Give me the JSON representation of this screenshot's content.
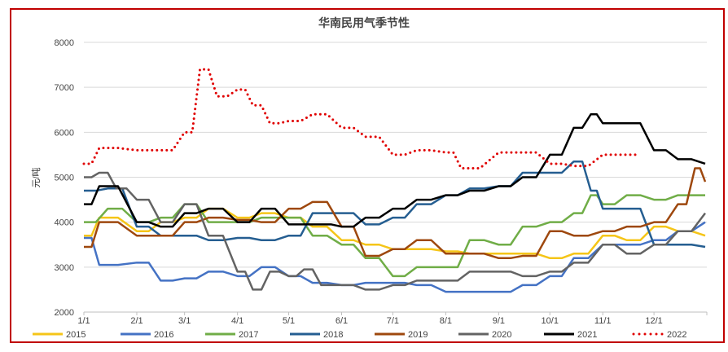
{
  "chart_data": {
    "type": "line",
    "title": "华南民用气季节性",
    "ylabel": "元/吨",
    "xlabel": "",
    "ylim": [
      2000,
      8000
    ],
    "yticks": [
      "2000",
      "3000",
      "4000",
      "5000",
      "6000",
      "7000",
      "8000"
    ],
    "xticks": [
      "1/1",
      "2/1",
      "3/1",
      "4/1",
      "5/1",
      "6/1",
      "7/1",
      "8/1",
      "9/1",
      "10/1",
      "11/1",
      "12/1"
    ],
    "grid": true,
    "legend": "bottom",
    "series": [
      {
        "name": "2015",
        "color": "#f5c518",
        "style": "solid",
        "x": [
          "1/1",
          "1/10",
          "2/1",
          "2/15",
          "3/1",
          "3/15",
          "4/1",
          "4/15",
          "5/1",
          "5/15",
          "6/1",
          "6/15",
          "7/1",
          "7/15",
          "8/1",
          "8/15",
          "9/1",
          "9/15",
          "10/1",
          "10/15",
          "11/1",
          "11/15",
          "12/1",
          "12/15",
          "12/31"
        ],
        "y": [
          3700,
          4100,
          3800,
          4000,
          4100,
          4300,
          4100,
          4200,
          4100,
          3900,
          3600,
          3500,
          3400,
          3400,
          3350,
          3300,
          3300,
          3300,
          3200,
          3300,
          3700,
          3600,
          3900,
          3800,
          3700
        ]
      },
      {
        "name": "2016",
        "color": "#4472c4",
        "style": "solid",
        "x": [
          "1/1",
          "1/10",
          "2/1",
          "2/15",
          "3/1",
          "3/15",
          "4/1",
          "4/15",
          "5/1",
          "5/15",
          "6/1",
          "6/15",
          "7/1",
          "7/15",
          "8/1",
          "8/15",
          "9/1",
          "9/15",
          "10/1",
          "10/15",
          "11/1",
          "11/15",
          "12/1",
          "12/15",
          "12/31"
        ],
        "y": [
          3650,
          3050,
          3100,
          2700,
          2750,
          2900,
          2800,
          3000,
          2800,
          2650,
          2600,
          2650,
          2650,
          2600,
          2450,
          2450,
          2450,
          2600,
          2800,
          3200,
          3500,
          3500,
          3600,
          3800,
          4000
        ]
      },
      {
        "name": "2017",
        "color": "#70ad47",
        "style": "solid",
        "x": [
          "1/1",
          "1/15",
          "2/1",
          "2/15",
          "3/1",
          "3/15",
          "4/1",
          "4/15",
          "5/1",
          "5/15",
          "6/1",
          "6/15",
          "7/1",
          "7/15",
          "8/1",
          "8/15",
          "9/1",
          "9/15",
          "10/1",
          "10/15",
          "10/25",
          "11/1",
          "11/15",
          "12/1",
          "12/15",
          "12/31"
        ],
        "y": [
          4000,
          4300,
          4000,
          4100,
          4400,
          4000,
          4000,
          4100,
          4100,
          3700,
          3500,
          3200,
          2800,
          3000,
          3000,
          3600,
          3500,
          3900,
          4000,
          4200,
          4600,
          4400,
          4600,
          4500,
          4600,
          4600
        ]
      },
      {
        "name": "2018",
        "color": "#255e91",
        "style": "solid",
        "x": [
          "1/1",
          "1/15",
          "2/1",
          "2/15",
          "3/1",
          "3/15",
          "4/1",
          "4/15",
          "5/1",
          "5/15",
          "6/1",
          "6/15",
          "7/1",
          "7/15",
          "8/1",
          "8/15",
          "9/1",
          "9/15",
          "10/1",
          "10/15",
          "10/25",
          "11/1",
          "11/15",
          "12/1",
          "12/15",
          "12/31"
        ],
        "y": [
          4700,
          4750,
          3900,
          3700,
          3700,
          3600,
          3650,
          3600,
          3700,
          4200,
          4200,
          3950,
          4100,
          4400,
          4600,
          4750,
          4800,
          5100,
          5100,
          5350,
          4700,
          4300,
          4300,
          3500,
          3500,
          3450
        ]
      },
      {
        "name": "2019",
        "color": "#9e480e",
        "style": "solid",
        "x": [
          "1/1",
          "1/10",
          "2/1",
          "2/15",
          "3/1",
          "3/15",
          "4/1",
          "4/15",
          "5/1",
          "5/15",
          "6/1",
          "6/15",
          "7/1",
          "7/15",
          "8/1",
          "8/15",
          "9/1",
          "9/15",
          "10/1",
          "10/15",
          "11/1",
          "11/15",
          "12/1",
          "12/15",
          "12/25",
          "12/31"
        ],
        "y": [
          3450,
          4000,
          3700,
          3700,
          4000,
          4100,
          4050,
          4000,
          4300,
          4450,
          3900,
          3250,
          3400,
          3600,
          3300,
          3300,
          3200,
          3250,
          3800,
          3700,
          3800,
          3900,
          4000,
          4400,
          5200,
          4900
        ]
      },
      {
        "name": "2020",
        "color": "#636363",
        "style": "solid",
        "x": [
          "1/1",
          "1/10",
          "1/20",
          "2/1",
          "2/15",
          "3/1",
          "3/15",
          "4/1",
          "4/10",
          "4/20",
          "5/1",
          "5/10",
          "5/20",
          "6/1",
          "6/15",
          "7/1",
          "7/15",
          "8/1",
          "8/15",
          "9/1",
          "9/15",
          "10/1",
          "10/15",
          "11/1",
          "11/15",
          "12/1",
          "12/15",
          "12/31"
        ],
        "y": [
          5000,
          5100,
          4750,
          4500,
          4000,
          4400,
          3700,
          2900,
          2500,
          2900,
          2800,
          2950,
          2600,
          2600,
          2500,
          2600,
          2700,
          2700,
          2900,
          2900,
          2800,
          2900,
          3100,
          3500,
          3300,
          3500,
          3800,
          4200
        ]
      },
      {
        "name": "2021",
        "color": "#000000",
        "style": "solid",
        "x": [
          "1/1",
          "1/10",
          "2/1",
          "2/15",
          "3/1",
          "3/15",
          "4/1",
          "4/15",
          "5/1",
          "5/20",
          "6/1",
          "6/15",
          "7/1",
          "7/15",
          "8/1",
          "8/15",
          "9/1",
          "9/15",
          "10/1",
          "10/15",
          "10/25",
          "11/1",
          "11/15",
          "12/1",
          "12/15",
          "12/31"
        ],
        "y": [
          4400,
          4800,
          4000,
          3900,
          4200,
          4300,
          4000,
          4300,
          3950,
          3950,
          3900,
          4100,
          4300,
          4500,
          4600,
          4700,
          4800,
          5000,
          5500,
          6100,
          6400,
          6200,
          6200,
          5600,
          5400,
          5300
        ]
      },
      {
        "name": "2022",
        "color": "#e00000",
        "style": "dotted",
        "x": [
          "1/1",
          "1/10",
          "2/1",
          "2/15",
          "3/1",
          "3/10",
          "3/20",
          "4/1",
          "4/10",
          "4/20",
          "5/1",
          "5/15",
          "6/1",
          "6/15",
          "7/1",
          "7/15",
          "8/1",
          "8/10",
          "9/1",
          "9/15",
          "10/1",
          "10/15",
          "11/1",
          "11/20"
        ],
        "y": [
          5300,
          5650,
          5600,
          5600,
          6000,
          7400,
          6800,
          6950,
          6600,
          6200,
          6250,
          6400,
          6100,
          5900,
          5500,
          5600,
          5550,
          5200,
          5550,
          5550,
          5300,
          5250,
          5500,
          5500
        ]
      }
    ]
  }
}
